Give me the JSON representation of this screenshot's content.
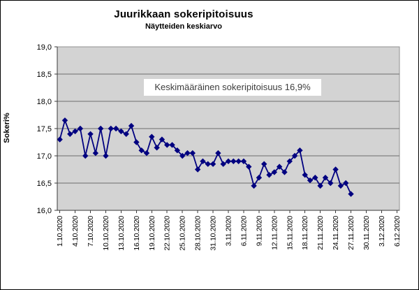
{
  "chart_data": {
    "type": "line",
    "title": "Juurikkaan sokeripitoisuus",
    "subtitle": "Näytteiden keskiarvo",
    "ylabel": "Sokeri%",
    "annotation": "Keskimääräinen sokeripitoisuus 16,9%",
    "ylim": [
      16.0,
      19.0
    ],
    "ytick_step": 0.5,
    "ytick_labels": [
      "19,0",
      "18,5",
      "18,0",
      "17,5",
      "17,0",
      "16,5",
      "16,0"
    ],
    "xtick_labels": [
      "1.10.2020",
      "4.10.2020",
      "7.10.2020",
      "10.10.2020",
      "13.10.2020",
      "16.10.2020",
      "19.10.2020",
      "22.10.2020",
      "25.10.2020",
      "28.10.2020",
      "31.10.2020",
      "3.11.2020",
      "6.11.2020",
      "9.11.2020",
      "12.11.2020",
      "15.11.2020",
      "18.11.2020",
      "21.11.2020",
      "24.11.2020",
      "27.11.2020",
      "30.11.2020",
      "3.12.2020",
      "6.12.2020"
    ],
    "xtick_interval_days": 3,
    "x_total_days": 67,
    "grid": true,
    "legend_position": "none",
    "plot_bg_color": "#d3d3d3",
    "grid_color": "#6e6e6e",
    "axis_color": "#3a3a3a",
    "series": [
      {
        "name": "Sokeri%",
        "color": "#000080",
        "marker": "diamond",
        "dates": [
          "1.10.2020",
          "2.10.2020",
          "3.10.2020",
          "4.10.2020",
          "5.10.2020",
          "6.10.2020",
          "7.10.2020",
          "8.10.2020",
          "9.10.2020",
          "10.10.2020",
          "11.10.2020",
          "12.10.2020",
          "13.10.2020",
          "14.10.2020",
          "15.10.2020",
          "16.10.2020",
          "17.10.2020",
          "18.10.2020",
          "19.10.2020",
          "20.10.2020",
          "21.10.2020",
          "22.10.2020",
          "23.10.2020",
          "24.10.2020",
          "25.10.2020",
          "26.10.2020",
          "27.10.2020",
          "28.10.2020",
          "29.10.2020",
          "30.10.2020",
          "31.10.2020",
          "1.11.2020",
          "2.11.2020",
          "3.11.2020",
          "4.11.2020",
          "5.11.2020",
          "6.11.2020",
          "7.11.2020",
          "8.11.2020",
          "9.11.2020",
          "10.11.2020",
          "11.11.2020",
          "12.11.2020",
          "13.11.2020",
          "14.11.2020",
          "15.11.2020",
          "16.11.2020",
          "17.11.2020",
          "18.11.2020",
          "19.11.2020",
          "20.11.2020",
          "21.11.2020",
          "22.11.2020",
          "23.11.2020",
          "24.11.2020",
          "25.11.2020",
          "26.11.2020",
          "27.11.2020"
        ],
        "values": [
          17.3,
          17.65,
          17.4,
          17.45,
          17.5,
          17.0,
          17.4,
          17.05,
          17.5,
          17.0,
          17.5,
          17.5,
          17.45,
          17.4,
          17.55,
          17.25,
          17.1,
          17.05,
          17.35,
          17.15,
          17.3,
          17.2,
          17.2,
          17.1,
          17.0,
          17.05,
          17.05,
          16.75,
          16.9,
          16.85,
          16.85,
          17.05,
          16.85,
          16.9,
          16.9,
          16.9,
          16.9,
          16.8,
          16.45,
          16.6,
          16.85,
          16.65,
          16.7,
          16.8,
          16.7,
          16.9,
          17.0,
          17.1,
          16.65,
          16.55,
          16.6,
          16.45,
          16.6,
          16.5,
          16.75,
          16.45,
          16.5,
          16.3
        ]
      }
    ]
  }
}
